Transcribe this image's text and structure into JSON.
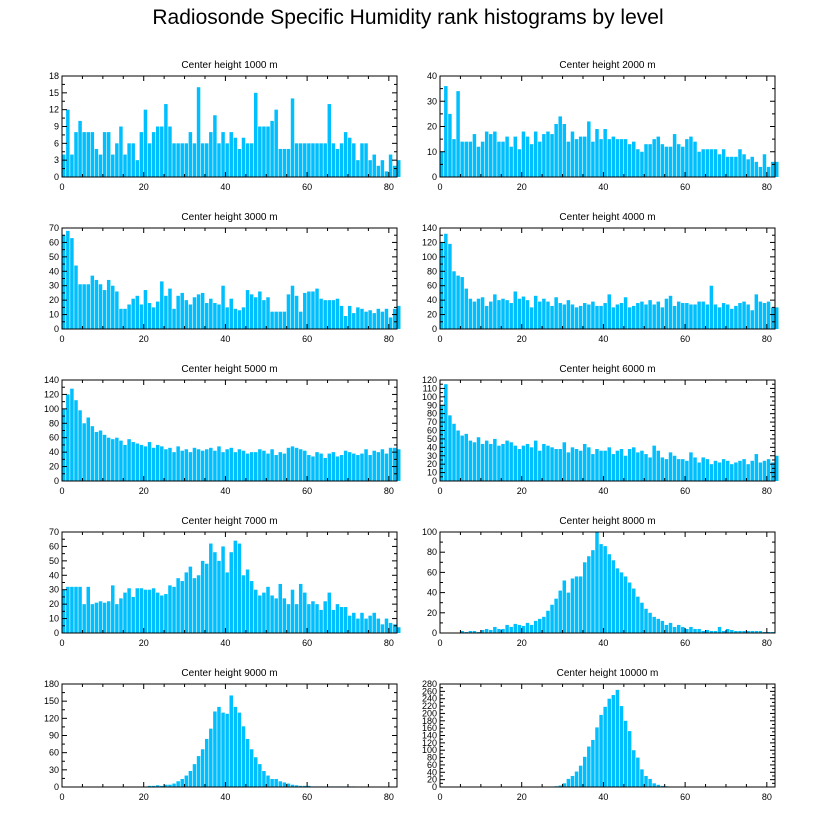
{
  "title": "Radiosonde Specific Humidity rank histograms by level",
  "colors": {
    "bar": "#00bfff",
    "axis": "#000000"
  },
  "chart_data": [
    {
      "type": "bar",
      "title": "Center height 1000 m",
      "xlabel": "",
      "ylabel": "",
      "xlim": [
        0,
        82
      ],
      "ylim": [
        0,
        18
      ],
      "xticks": [
        0,
        20,
        40,
        60,
        80
      ],
      "yticks": [
        0,
        3,
        6,
        9,
        12,
        15,
        18
      ],
      "bins_start": 0,
      "values": [
        4,
        12,
        4,
        8,
        10,
        8,
        8,
        8,
        5,
        4,
        8,
        8,
        4,
        6,
        9,
        4,
        6,
        6,
        3,
        8,
        12,
        6,
        8,
        9,
        9,
        13,
        9,
        6,
        6,
        6,
        6,
        8,
        6,
        16,
        6,
        6,
        8,
        11,
        6,
        8,
        6,
        8,
        7,
        5,
        7,
        6,
        6,
        15,
        9,
        9,
        9,
        10,
        12,
        5,
        5,
        5,
        14,
        6,
        6,
        6,
        6,
        6,
        6,
        6,
        6,
        13,
        6,
        5,
        6,
        8,
        7,
        6,
        3,
        6,
        6,
        3,
        4,
        2,
        3,
        1,
        4,
        2,
        3
      ]
    },
    {
      "type": "bar",
      "title": "Center height 2000 m",
      "xlabel": "",
      "ylabel": "",
      "xlim": [
        0,
        82
      ],
      "ylim": [
        0,
        40
      ],
      "xticks": [
        0,
        20,
        40,
        60,
        80
      ],
      "yticks": [
        0,
        10,
        20,
        30,
        40
      ],
      "bins_start": 0,
      "values": [
        10,
        36,
        25,
        15,
        34,
        14,
        14,
        14,
        17,
        12,
        14,
        18,
        17,
        18,
        14,
        14,
        16,
        12,
        16,
        11,
        18,
        16,
        13,
        18,
        14,
        17,
        18,
        17,
        21,
        24,
        21,
        14,
        18,
        15,
        16,
        16,
        22,
        14,
        19,
        15,
        19,
        15,
        16,
        15,
        15,
        15,
        13,
        14,
        11,
        10,
        13,
        13,
        15,
        16,
        13,
        12,
        12,
        17,
        13,
        12,
        15,
        16,
        14,
        10,
        11,
        11,
        11,
        11,
        9,
        11,
        8,
        8,
        8,
        11,
        9,
        7,
        8,
        6,
        4,
        9,
        4,
        6,
        6
      ]
    },
    {
      "type": "bar",
      "title": "Center height 3000 m",
      "xlabel": "",
      "ylabel": "",
      "xlim": [
        0,
        82
      ],
      "ylim": [
        0,
        70
      ],
      "xticks": [
        0,
        20,
        40,
        60,
        80
      ],
      "yticks": [
        0,
        10,
        20,
        30,
        40,
        50,
        60,
        70
      ],
      "bins_start": 0,
      "values": [
        65,
        68,
        63,
        44,
        31,
        31,
        31,
        37,
        34,
        31,
        27,
        34,
        30,
        26,
        14,
        14,
        17,
        21,
        23,
        17,
        27,
        18,
        15,
        19,
        33,
        23,
        28,
        14,
        23,
        25,
        20,
        17,
        22,
        24,
        25,
        18,
        21,
        18,
        17,
        30,
        15,
        21,
        14,
        13,
        15,
        27,
        24,
        22,
        26,
        20,
        22,
        12,
        12,
        12,
        12,
        24,
        30,
        23,
        12,
        25,
        26,
        26,
        28,
        21,
        20,
        20,
        20,
        21,
        16,
        9,
        16,
        11,
        15,
        14,
        12,
        13,
        11,
        14,
        12,
        14,
        8,
        14,
        16
      ]
    },
    {
      "type": "bar",
      "title": "Center height 4000 m",
      "xlabel": "",
      "ylabel": "",
      "xlim": [
        0,
        82
      ],
      "ylim": [
        0,
        140
      ],
      "xticks": [
        0,
        20,
        40,
        60,
        80
      ],
      "yticks": [
        0,
        20,
        40,
        60,
        80,
        100,
        120,
        140
      ],
      "bins_start": 0,
      "values": [
        120,
        132,
        118,
        80,
        74,
        72,
        56,
        42,
        38,
        42,
        44,
        32,
        38,
        48,
        40,
        42,
        40,
        36,
        52,
        42,
        45,
        40,
        30,
        46,
        38,
        42,
        38,
        32,
        44,
        36,
        34,
        40,
        34,
        30,
        32,
        36,
        34,
        38,
        32,
        32,
        36,
        48,
        30,
        34,
        36,
        44,
        30,
        32,
        36,
        38,
        34,
        40,
        34,
        38,
        30,
        42,
        46,
        32,
        38,
        36,
        36,
        34,
        34,
        38,
        38,
        34,
        60,
        34,
        30,
        36,
        34,
        28,
        32,
        36,
        38,
        34,
        26,
        48,
        38,
        36,
        38,
        30,
        30
      ]
    },
    {
      "type": "bar",
      "title": "Center height 5000 m",
      "xlabel": "",
      "ylabel": "",
      "xlim": [
        0,
        82
      ],
      "ylim": [
        0,
        140
      ],
      "xticks": [
        0,
        20,
        40,
        60,
        80
      ],
      "yticks": [
        0,
        20,
        40,
        60,
        80,
        100,
        120,
        140
      ],
      "bins_start": 0,
      "values": [
        100,
        120,
        128,
        112,
        98,
        80,
        88,
        76,
        68,
        70,
        64,
        60,
        58,
        60,
        56,
        50,
        58,
        54,
        52,
        50,
        48,
        54,
        46,
        50,
        48,
        44,
        46,
        40,
        48,
        42,
        44,
        40,
        46,
        44,
        42,
        44,
        46,
        42,
        48,
        40,
        44,
        46,
        40,
        44,
        42,
        38,
        40,
        40,
        44,
        42,
        38,
        44,
        36,
        40,
        38,
        46,
        48,
        46,
        44,
        42,
        36,
        34,
        40,
        38,
        32,
        38,
        40,
        34,
        36,
        42,
        40,
        38,
        36,
        38,
        44,
        36,
        42,
        40,
        44,
        38,
        46,
        46,
        44
      ]
    },
    {
      "type": "bar",
      "title": "Center height 6000 m",
      "xlabel": "",
      "ylabel": "",
      "xlim": [
        0,
        82
      ],
      "ylim": [
        0,
        120
      ],
      "xticks": [
        0,
        20,
        40,
        60,
        80
      ],
      "yticks": [
        0,
        10,
        20,
        30,
        40,
        50,
        60,
        70,
        80,
        90,
        100,
        110,
        120
      ],
      "bins_start": 0,
      "values": [
        90,
        115,
        78,
        68,
        60,
        54,
        56,
        48,
        46,
        52,
        44,
        48,
        44,
        50,
        42,
        44,
        48,
        46,
        42,
        38,
        42,
        44,
        40,
        48,
        36,
        44,
        42,
        40,
        38,
        38,
        46,
        34,
        40,
        38,
        36,
        44,
        40,
        32,
        38,
        36,
        36,
        40,
        32,
        36,
        38,
        30,
        38,
        40,
        34,
        36,
        32,
        28,
        42,
        36,
        28,
        26,
        34,
        30,
        26,
        26,
        24,
        34,
        28,
        22,
        28,
        26,
        20,
        24,
        22,
        26,
        24,
        20,
        22,
        24,
        26,
        20,
        24,
        32,
        22,
        24,
        26,
        22,
        30
      ]
    },
    {
      "type": "bar",
      "title": "Center height 7000 m",
      "xlabel": "",
      "ylabel": "",
      "xlim": [
        0,
        82
      ],
      "ylim": [
        0,
        70
      ],
      "xticks": [
        0,
        20,
        40,
        60,
        80
      ],
      "yticks": [
        0,
        10,
        20,
        30,
        40,
        50,
        60,
        70
      ],
      "bins_start": 0,
      "values": [
        30,
        32,
        32,
        32,
        32,
        20,
        32,
        20,
        21,
        22,
        21,
        22,
        33,
        20,
        24,
        28,
        31,
        25,
        31,
        31,
        30,
        30,
        31,
        28,
        26,
        27,
        33,
        32,
        38,
        36,
        42,
        46,
        38,
        40,
        50,
        48,
        62,
        56,
        50,
        60,
        42,
        56,
        64,
        62,
        40,
        44,
        36,
        30,
        26,
        28,
        32,
        26,
        24,
        34,
        24,
        20,
        30,
        20,
        34,
        28,
        20,
        22,
        20,
        16,
        22,
        28,
        16,
        20,
        18,
        18,
        12,
        14,
        10,
        14,
        10,
        12,
        14,
        10,
        6,
        10,
        7,
        6,
        4
      ]
    },
    {
      "type": "bar",
      "title": "Center height 8000 m",
      "xlabel": "",
      "ylabel": "",
      "xlim": [
        0,
        82
      ],
      "ylim": [
        0,
        100
      ],
      "xticks": [
        0,
        20,
        40,
        60,
        80
      ],
      "yticks": [
        0,
        20,
        40,
        60,
        80,
        100
      ],
      "bins_start": 0,
      "values": [
        0,
        0,
        0,
        0,
        0,
        2,
        1,
        2,
        2,
        1,
        3,
        4,
        3,
        6,
        4,
        4,
        8,
        6,
        9,
        8,
        7,
        10,
        8,
        12,
        14,
        16,
        22,
        28,
        34,
        42,
        52,
        40,
        54,
        56,
        56,
        70,
        76,
        82,
        100,
        88,
        86,
        78,
        72,
        64,
        60,
        56,
        50,
        44,
        36,
        30,
        24,
        20,
        16,
        14,
        12,
        8,
        10,
        6,
        8,
        6,
        4,
        6,
        4,
        4,
        2,
        3,
        2,
        2,
        6,
        2,
        4,
        3,
        2,
        2,
        2,
        2,
        2,
        2,
        2,
        1,
        1,
        1,
        0
      ]
    },
    {
      "type": "bar",
      "title": "Center height 9000 m",
      "xlabel": "",
      "ylabel": "",
      "xlim": [
        0,
        82
      ],
      "ylim": [
        0,
        180
      ],
      "xticks": [
        0,
        20,
        40,
        60,
        80
      ],
      "yticks": [
        0,
        30,
        60,
        90,
        120,
        150,
        180
      ],
      "bins_start": 0,
      "values": [
        0,
        0,
        0,
        0,
        0,
        0,
        0,
        0,
        0,
        0,
        0,
        0,
        0,
        0,
        0,
        0,
        0,
        0,
        0,
        0,
        0,
        2,
        2,
        3,
        2,
        4,
        4,
        6,
        10,
        14,
        20,
        28,
        40,
        54,
        66,
        84,
        102,
        132,
        140,
        130,
        128,
        160,
        140,
        130,
        106,
        84,
        66,
        52,
        40,
        28,
        20,
        14,
        14,
        10,
        8,
        6,
        4,
        3,
        2,
        2,
        2,
        1,
        1,
        1,
        1,
        1,
        1,
        1,
        1,
        1,
        1,
        1,
        0,
        0,
        0,
        0,
        0,
        0,
        0,
        0,
        0,
        0,
        0
      ]
    },
    {
      "type": "bar",
      "title": "Center height 10000 m",
      "xlabel": "",
      "ylabel": "",
      "xlim": [
        0,
        82
      ],
      "ylim": [
        0,
        280
      ],
      "xticks": [
        0,
        20,
        40,
        60,
        80
      ],
      "yticks": [
        0,
        20,
        40,
        60,
        80,
        100,
        120,
        140,
        160,
        180,
        200,
        220,
        240,
        260,
        280
      ],
      "bins_start": 0,
      "values": [
        0,
        0,
        0,
        0,
        0,
        0,
        0,
        0,
        0,
        0,
        0,
        0,
        0,
        0,
        0,
        0,
        0,
        0,
        0,
        0,
        0,
        0,
        0,
        0,
        0,
        0,
        0,
        1,
        2,
        4,
        10,
        22,
        30,
        42,
        58,
        82,
        110,
        128,
        162,
        196,
        218,
        240,
        250,
        264,
        220,
        180,
        152,
        100,
        80,
        48,
        30,
        22,
        10,
        6,
        3,
        2,
        1,
        1,
        1,
        0,
        0,
        0,
        0,
        0,
        0,
        0,
        0,
        0,
        0,
        0,
        0,
        0,
        0,
        0,
        0,
        0,
        0,
        0,
        0,
        0,
        0,
        0,
        0
      ]
    }
  ]
}
